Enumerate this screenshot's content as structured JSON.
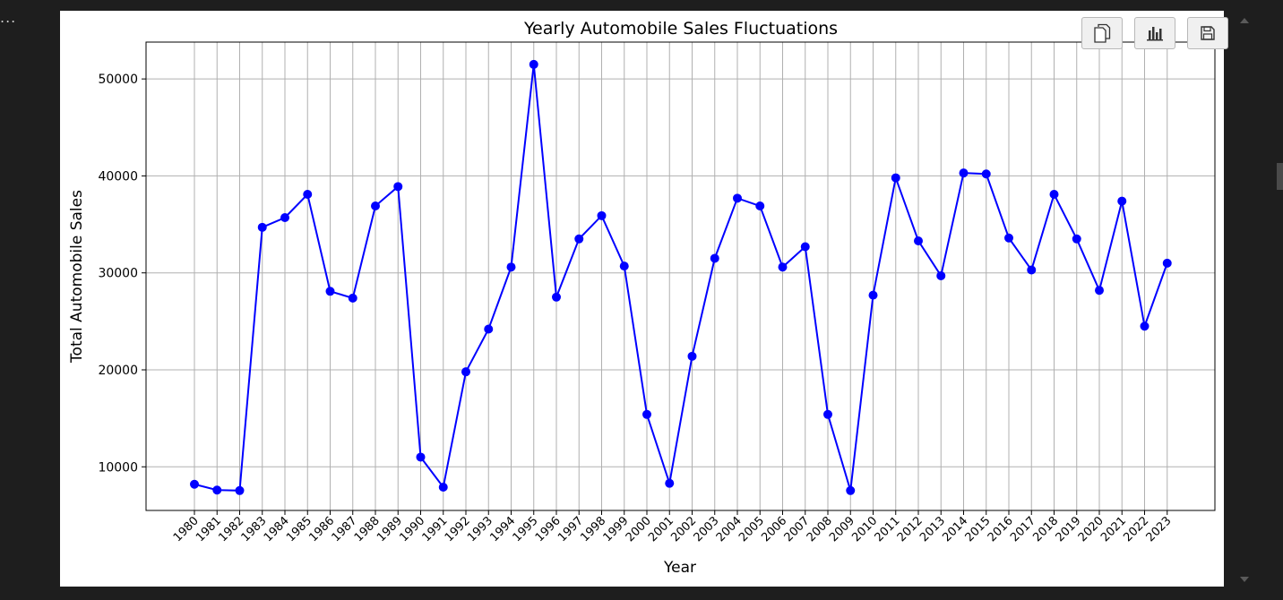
{
  "cell": {
    "more_label": "..."
  },
  "toolbar": {
    "buttons": [
      {
        "icon": "copy-icon"
      },
      {
        "icon": "bar-chart-icon"
      },
      {
        "icon": "save-icon"
      }
    ]
  },
  "chart_data": {
    "type": "line",
    "title": "Yearly Automobile Sales Fluctuations",
    "xlabel": "Year",
    "ylabel": "Total Automobile Sales",
    "ylim": [
      5500,
      53800
    ],
    "yticks": [
      10000,
      20000,
      30000,
      40000,
      50000
    ],
    "grid": true,
    "marker": "circle",
    "color": "#0000ff",
    "x": [
      "1980",
      "1981",
      "1982",
      "1983",
      "1984",
      "1985",
      "1986",
      "1987",
      "1988",
      "1989",
      "1990",
      "1991",
      "1992",
      "1993",
      "1994",
      "1995",
      "1996",
      "1997",
      "1998",
      "1999",
      "2000",
      "2001",
      "2002",
      "2003",
      "2004",
      "2005",
      "2006",
      "2007",
      "2008",
      "2009",
      "2010",
      "2011",
      "2012",
      "2013",
      "2014",
      "2015",
      "2016",
      "2017",
      "2018",
      "2019",
      "2020",
      "2021",
      "2022",
      "2023"
    ],
    "values": [
      8200,
      7600,
      7550,
      34700,
      35700,
      38100,
      28100,
      27400,
      36900,
      38900,
      11000,
      7900,
      19800,
      24200,
      30600,
      51500,
      27500,
      33500,
      35900,
      30700,
      15400,
      8300,
      21400,
      31500,
      37700,
      36900,
      30600,
      32700,
      15400,
      7550,
      27700,
      39800,
      33300,
      29700,
      40300,
      40200,
      33600,
      30300,
      38100,
      33500,
      28200,
      37400,
      24500,
      31000
    ]
  }
}
